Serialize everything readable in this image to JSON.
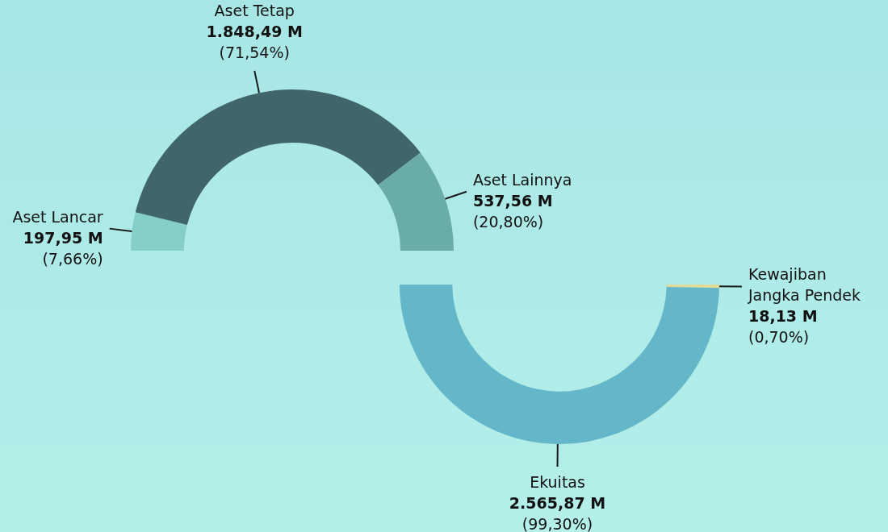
{
  "chart_data": [
    {
      "type": "donut",
      "categories": [
        "Aset Lancar",
        "Aset Tetap",
        "Aset Lainnya"
      ],
      "values": [
        197.95,
        1848.49,
        537.56
      ],
      "colors": [
        "#86cfc6",
        "#40666b",
        "#69ada6"
      ],
      "value_labels": [
        "197,95 M\n(7,66%)",
        "1.848,49 M\n(71,54%)",
        "537,56 M\n(20,80%)"
      ]
    },
    {
      "type": "donut",
      "categories": [
        "Kewajiban Jangka Pendek",
        "Ekuitas"
      ],
      "values": [
        18.13,
        2565.87
      ],
      "colors": [
        "#e0dc98",
        "#64b6c9"
      ],
      "value_labels": [
        "18,13 M\n(0,70%)",
        "2.565,87 M\n(99,30%)"
      ]
    }
  ]
}
